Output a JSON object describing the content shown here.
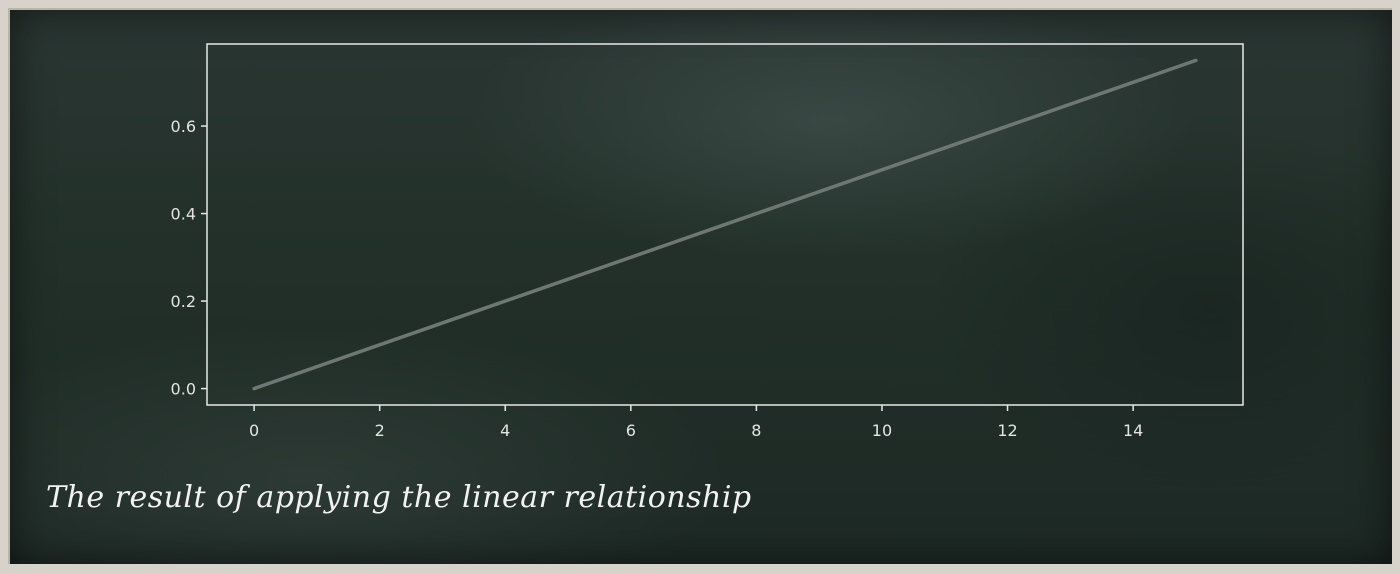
{
  "caption": "The result of applying the linear relationship",
  "colors": {
    "board": "#243029",
    "axes": "#e8e8e8",
    "line": "#6f7774",
    "text": "#e4e4e4"
  },
  "chart_data": {
    "type": "line",
    "title": "",
    "xlabel": "",
    "ylabel": "",
    "xlim": [
      -0.75,
      15.75
    ],
    "ylim": [
      -0.0375,
      0.7875
    ],
    "x_ticks": [
      0,
      2,
      4,
      6,
      8,
      10,
      12,
      14
    ],
    "x_tick_labels": [
      "0",
      "2",
      "4",
      "6",
      "8",
      "10",
      "12",
      "14"
    ],
    "y_ticks": [
      0.0,
      0.2,
      0.4,
      0.6
    ],
    "y_tick_labels": [
      "0.0",
      "0.2",
      "0.4",
      "0.6"
    ],
    "grid": false,
    "series": [
      {
        "x": [
          0,
          15
        ],
        "y": [
          0.0,
          0.75
        ]
      }
    ]
  }
}
